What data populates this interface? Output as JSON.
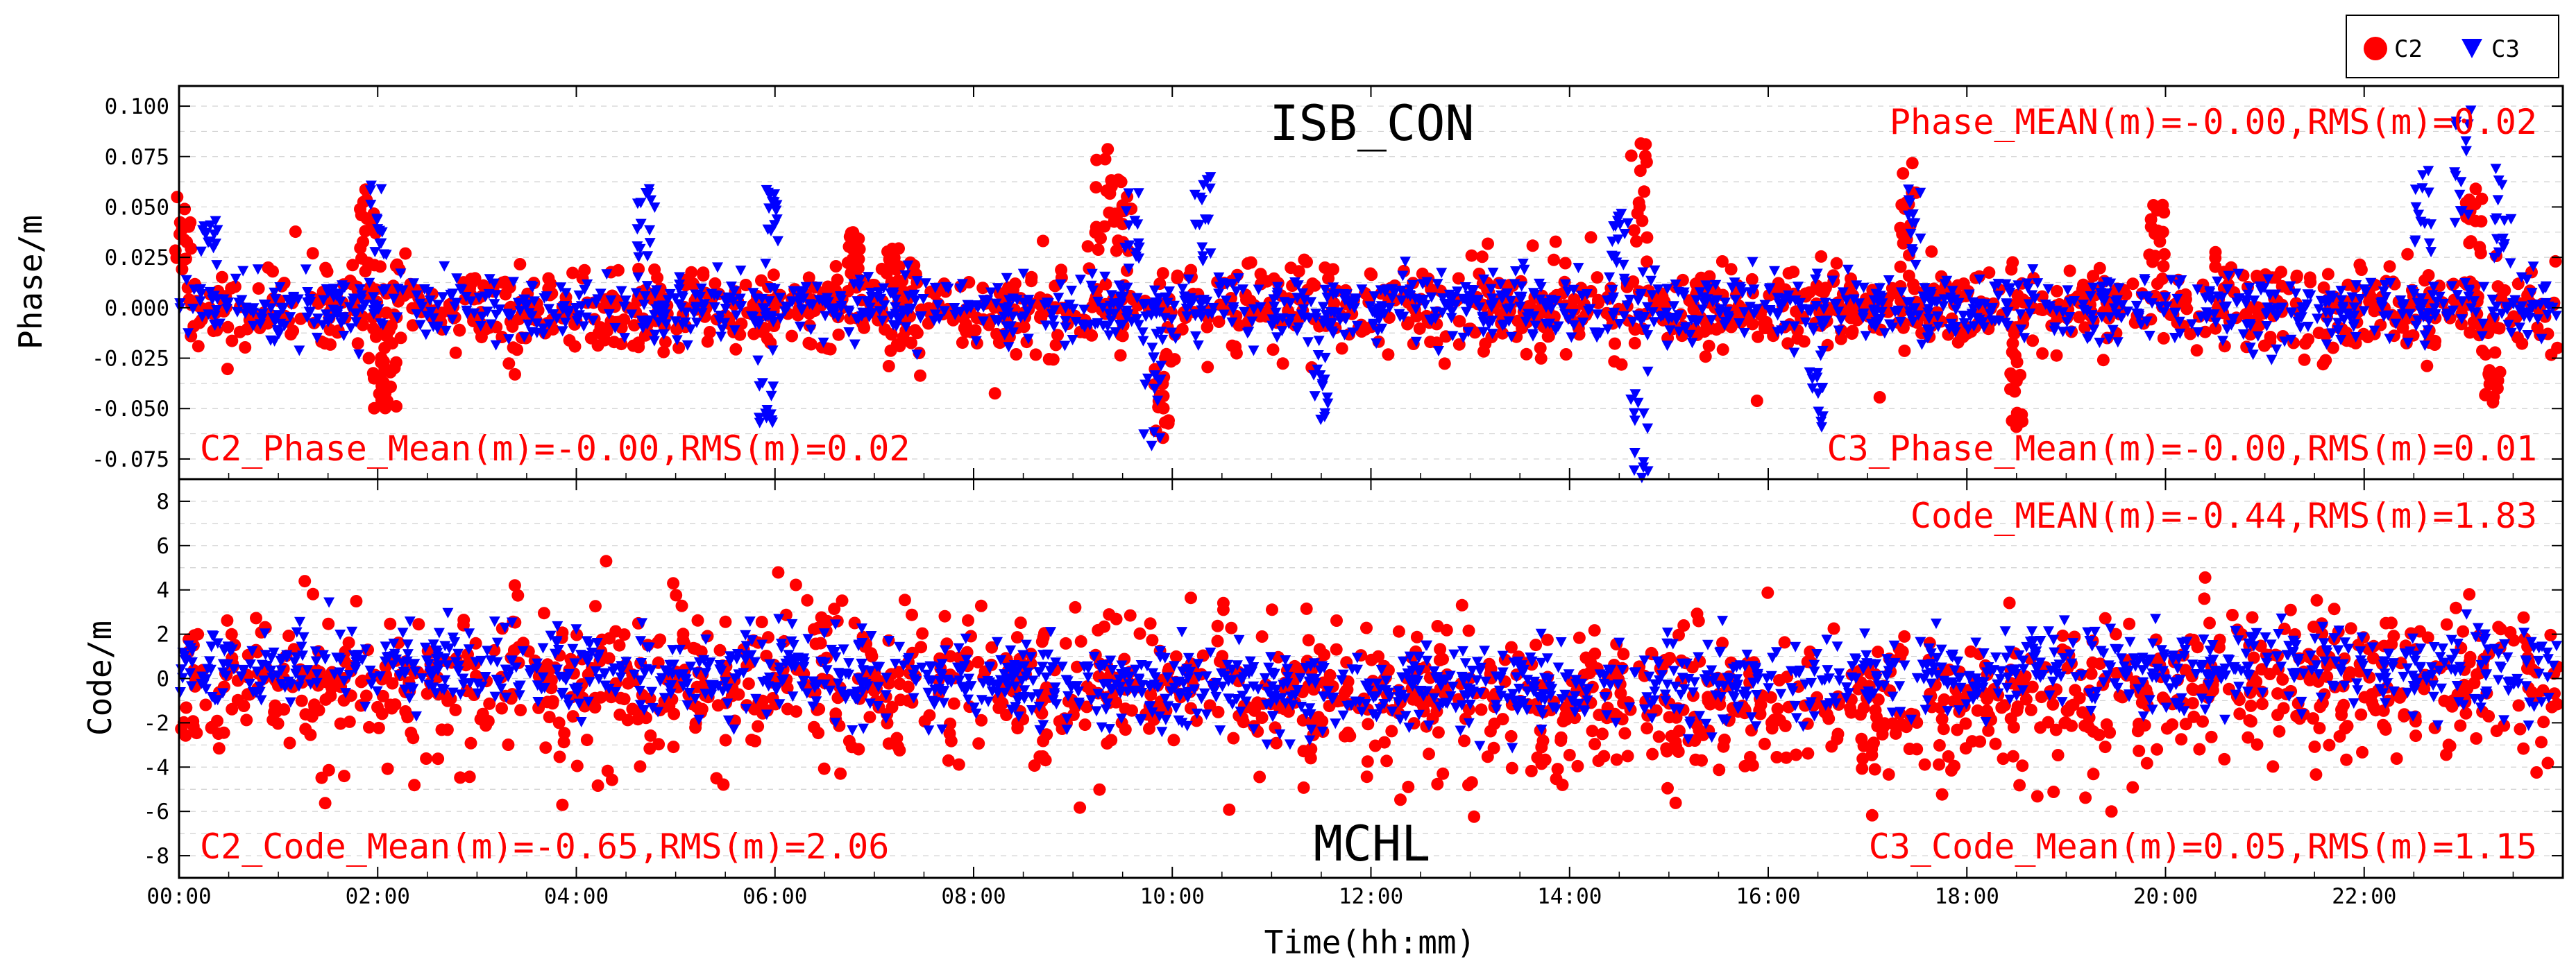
{
  "chart_data": [
    {
      "type": "scatter",
      "panel": "top",
      "title": "ISB_CON",
      "ylabel": "Phase/m",
      "xlabel": "",
      "xlim": [
        0,
        24
      ],
      "ylim": [
        -0.085,
        0.11
      ],
      "yticks": [
        "0.100",
        "0.075",
        "0.050",
        "0.025",
        "0.000",
        "-0.025",
        "-0.050",
        "-0.075"
      ],
      "ytick_values": [
        0.1,
        0.075,
        0.05,
        0.025,
        0.0,
        -0.025,
        -0.05,
        -0.075
      ],
      "grid": true,
      "annotations": {
        "mean_rms": "Phase_MEAN(m)=-0.00,RMS(m)=0.02",
        "c2": "C2_Phase_Mean(m)=-0.00,RMS(m)=0.02",
        "c3": "C3_Phase_Mean(m)=-0.00,RMS(m)=0.01"
      },
      "series": [
        {
          "name": "C2",
          "marker": "circle",
          "color": "#ff0000",
          "noise_sd": 0.011,
          "spikes": [
            [
              0.05,
              0.055
            ],
            [
              1.9,
              0.06
            ],
            [
              2.0,
              -0.05
            ],
            [
              2.1,
              -0.06
            ],
            [
              6.8,
              0.04
            ],
            [
              7.2,
              0.03
            ],
            [
              9.3,
              0.08
            ],
            [
              9.5,
              0.065
            ],
            [
              9.9,
              -0.065
            ],
            [
              14.7,
              0.082
            ],
            [
              17.4,
              0.072
            ],
            [
              18.5,
              -0.06
            ],
            [
              19.9,
              0.055
            ],
            [
              23.1,
              0.06
            ],
            [
              23.3,
              -0.05
            ]
          ]
        },
        {
          "name": "C3",
          "marker": "triangle-down",
          "color": "#0000ff",
          "noise_sd": 0.008,
          "spikes": [
            [
              0.3,
              0.045
            ],
            [
              2.0,
              0.065
            ],
            [
              4.7,
              0.068
            ],
            [
              5.9,
              -0.06
            ],
            [
              6.0,
              0.06
            ],
            [
              9.6,
              0.06
            ],
            [
              9.8,
              -0.07
            ],
            [
              10.3,
              0.065
            ],
            [
              11.5,
              -0.06
            ],
            [
              14.5,
              0.055
            ],
            [
              14.7,
              -0.085
            ],
            [
              16.5,
              -0.06
            ],
            [
              17.5,
              0.06
            ],
            [
              22.6,
              0.075
            ],
            [
              23.0,
              0.105
            ],
            [
              23.4,
              0.07
            ]
          ]
        }
      ]
    },
    {
      "type": "scatter",
      "panel": "bottom",
      "title": "MCHL",
      "ylabel": "Code/m",
      "xlabel": "Time(hh:mm)",
      "xlim": [
        0,
        24
      ],
      "ylim": [
        -9,
        9
      ],
      "yticks": [
        "8",
        "6",
        "4",
        "2",
        "0",
        "-2",
        "-4",
        "-6",
        "-8"
      ],
      "ytick_values": [
        8,
        6,
        4,
        2,
        0,
        -2,
        -4,
        -6,
        -8
      ],
      "xticks": [
        "00:00",
        "02:00",
        "04:00",
        "06:00",
        "08:00",
        "10:00",
        "12:00",
        "14:00",
        "16:00",
        "18:00",
        "20:00",
        "22:00"
      ],
      "xtick_values": [
        0,
        2,
        4,
        6,
        8,
        10,
        12,
        14,
        16,
        18,
        20,
        22
      ],
      "grid": true,
      "annotations": {
        "mean_rms": "Code_MEAN(m)=-0.44,RMS(m)=1.83",
        "c2": "C2_Code_Mean(m)=-0.65,RMS(m)=2.06",
        "c3": "C3_Code_Mean(m)=0.05,RMS(m)=1.15"
      },
      "series": [
        {
          "name": "C2",
          "marker": "circle",
          "color": "#ff0000",
          "mean": -0.65,
          "rms": 2.06
        },
        {
          "name": "C3",
          "marker": "triangle-down",
          "color": "#0000ff",
          "mean": 0.05,
          "rms": 1.15
        }
      ]
    }
  ],
  "legend": {
    "position": "top-right",
    "items": [
      {
        "label": "C2",
        "marker": "circle",
        "color": "#ff0000"
      },
      {
        "label": "C3",
        "marker": "triangle-down",
        "color": "#0000ff"
      }
    ]
  }
}
